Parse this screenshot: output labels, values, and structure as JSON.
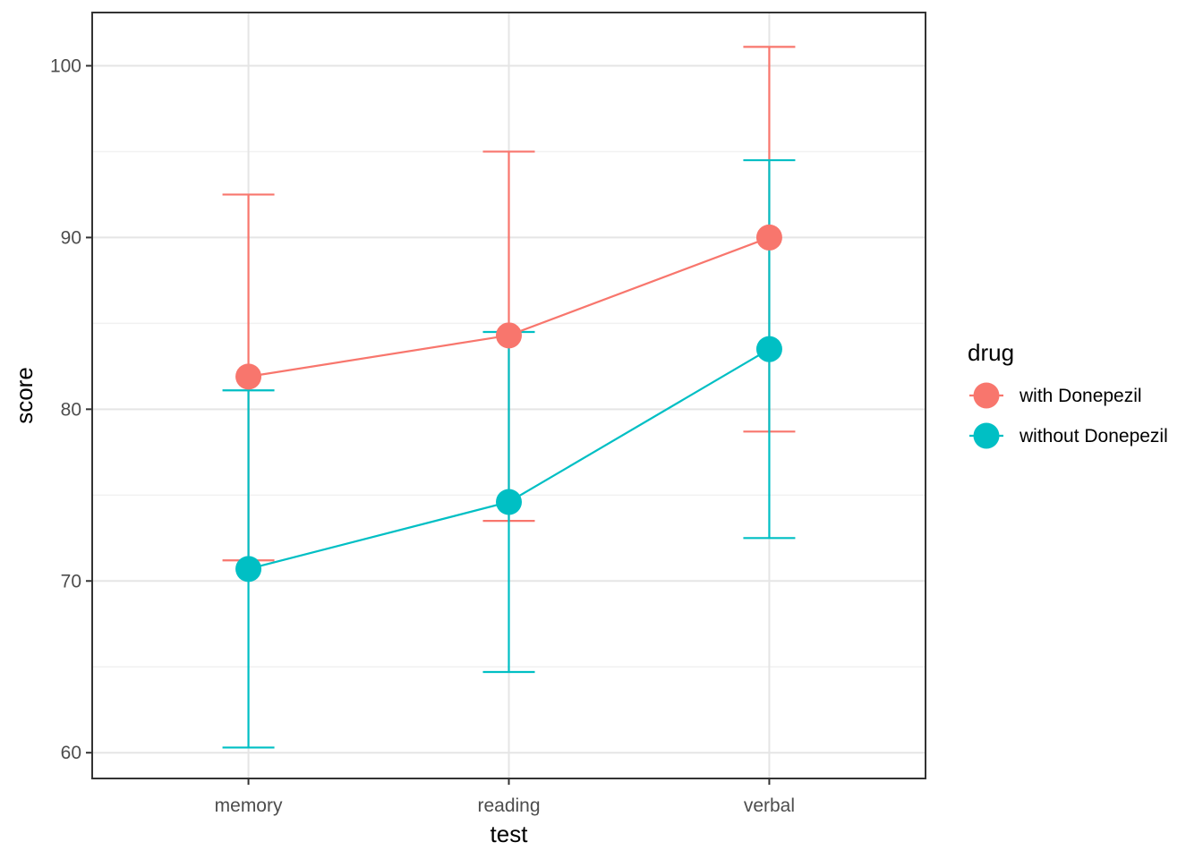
{
  "figure": {
    "xlabel": "test",
    "ylabel": "score",
    "legend_title": "drug"
  },
  "chart_data": {
    "type": "line",
    "title": "",
    "xlabel": "test",
    "ylabel": "score",
    "categories": [
      "memory",
      "reading",
      "verbal"
    ],
    "series": [
      {
        "name": "with Donepezil",
        "color": "#F8766D",
        "means": [
          81.9,
          84.3,
          90.0
        ],
        "lower": [
          71.2,
          73.5,
          78.7
        ],
        "upper": [
          92.5,
          95.0,
          101.1
        ]
      },
      {
        "name": "without Donepezil",
        "color": "#00BFC4",
        "means": [
          70.7,
          74.6,
          83.5
        ],
        "lower": [
          60.3,
          64.7,
          72.5
        ],
        "upper": [
          81.1,
          84.5,
          94.5
        ]
      }
    ],
    "y_major_ticks": [
      60,
      70,
      80,
      90,
      100
    ],
    "y_minor_gridlines": [
      65,
      75,
      85,
      95
    ],
    "ylim": [
      58.5,
      103.1
    ],
    "grid": true,
    "error_bars": true,
    "legend": {
      "title": "drug",
      "position": "right",
      "entries": [
        "with Donepezil",
        "without Donepezil"
      ]
    },
    "colors": {
      "tick_label": "#4d4d4d",
      "axis_title": "#000000",
      "panel_border": "#333333",
      "grid_major": "#e5e5e5",
      "grid_minor": "#f1f1f1"
    }
  }
}
